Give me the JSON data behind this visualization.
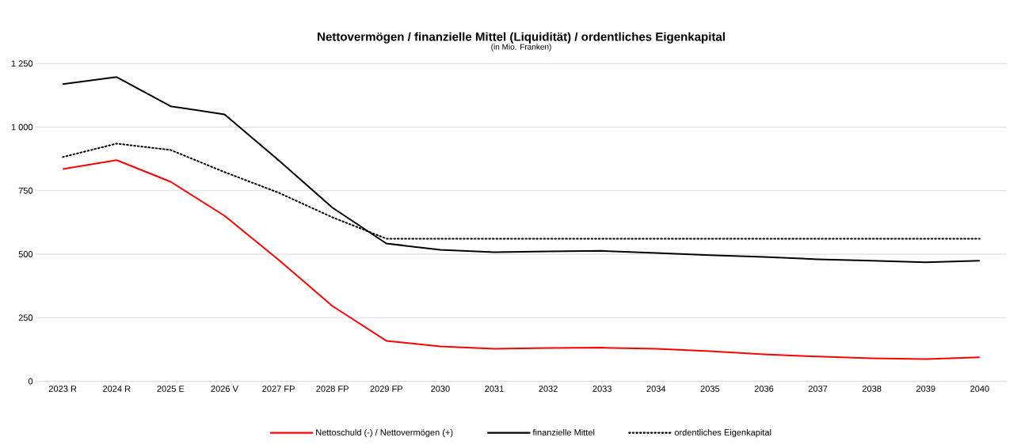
{
  "chart_data": {
    "type": "line",
    "title": "Nettovermögen / finanzielle Mittel (Liquidität) / ordentliches Eigenkapital",
    "subtitle": "(in Mio. Franken)",
    "categories": [
      "2023 R",
      "2024 R",
      "2025 E",
      "2026 V",
      "2027 FP",
      "2028 FP",
      "2029 FP",
      "2030",
      "2031",
      "2032",
      "2033",
      "2034",
      "2035",
      "2036",
      "2037",
      "2038",
      "2039",
      "2040"
    ],
    "series": [
      {
        "name": "Nettoschuld (-) / Nettovermögen (+)",
        "color": "#ff0000",
        "line_style": "solid",
        "values": [
          835,
          870,
          785,
          651,
          478,
          296,
          159,
          137,
          128,
          131,
          132,
          128,
          118,
          106,
          97,
          90,
          87,
          94
        ]
      },
      {
        "name": "finanzielle Mittel",
        "color": "#000000",
        "line_style": "solid",
        "values": [
          1169,
          1197,
          1082,
          1050,
          870,
          683,
          542,
          517,
          508,
          511,
          513,
          505,
          496,
          489,
          480,
          474,
          468,
          474
        ]
      },
      {
        "name": "ordentliches Eigenkapital",
        "color": "#000000",
        "line_style": "dotted",
        "values": [
          882,
          935,
          910,
          823,
          742,
          645,
          561,
          561,
          561,
          561,
          561,
          561,
          561,
          561,
          561,
          561,
          561,
          561
        ]
      }
    ],
    "ylim": [
      0,
      1250
    ],
    "yticks": [
      0,
      {
        "value": 250,
        "label": "250"
      },
      {
        "value": 500,
        "label": "500"
      },
      {
        "value": 750,
        "label": "750"
      },
      {
        "value": 1000,
        "label": "1 000"
      },
      {
        "value": 1250,
        "label": "1 250"
      }
    ],
    "grid": "y",
    "legend": "bottom",
    "marker": "none"
  }
}
